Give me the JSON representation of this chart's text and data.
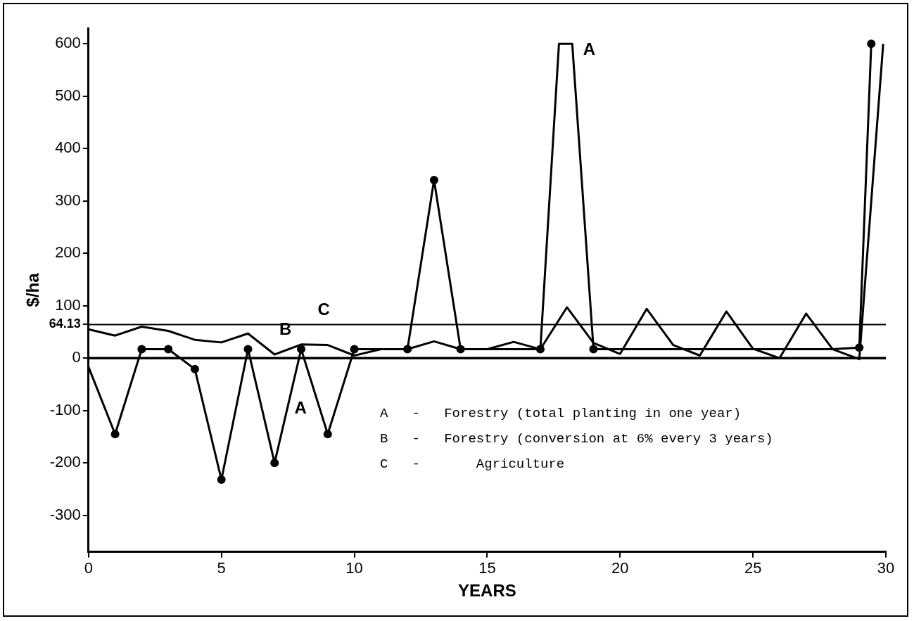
{
  "chart_data": {
    "type": "line",
    "xlabel": "YEARS",
    "ylabel": "$/ha",
    "xlim": [
      0,
      30
    ],
    "xticks": [
      0,
      5,
      10,
      15,
      20,
      25,
      30
    ],
    "ylim": [
      -370,
      630
    ],
    "yticks": [
      -300,
      -200,
      -100,
      0,
      {
        "value": 64.13,
        "label": "64.13"
      },
      100,
      200,
      300,
      400,
      500,
      600
    ],
    "grid": false,
    "legend": false,
    "series": [
      {
        "color": "#000000",
        "x": [
          0,
          1,
          2,
          3,
          4,
          5,
          6,
          7,
          8,
          9,
          10,
          11,
          12,
          13,
          14,
          15,
          16,
          17,
          17.7,
          18.2,
          19,
          20,
          21,
          22,
          23,
          24,
          25,
          26,
          27,
          28,
          29,
          29.45
        ],
        "values": [
          -17,
          -145,
          17,
          17,
          -21,
          -232,
          17,
          -200,
          17,
          -145,
          17,
          17,
          17,
          340,
          17,
          17,
          17,
          17,
          600,
          600,
          17,
          17,
          17,
          17,
          17,
          17,
          17,
          17,
          17,
          17,
          20,
          600
        ]
      },
      {
        "color": "#000000",
        "x": [
          0,
          1,
          2,
          3,
          4,
          5,
          6,
          7,
          8,
          9,
          10,
          11,
          12,
          13,
          14,
          15,
          16,
          17,
          18,
          19,
          20,
          21,
          22,
          23,
          24,
          25,
          26,
          27,
          28,
          29,
          29.9
        ],
        "values": [
          55,
          43,
          60,
          52,
          35,
          30,
          47,
          7,
          26,
          25,
          5,
          17,
          17,
          32,
          17,
          17,
          31,
          17,
          97,
          29,
          8,
          94,
          25,
          5,
          89,
          18,
          0,
          85,
          17,
          -2,
          600
        ]
      },
      {
        "type": "scatter",
        "color": "#000000",
        "marker": "circle",
        "x": [
          1,
          2,
          3,
          4,
          5,
          6,
          7,
          8,
          9,
          10,
          12,
          13,
          14,
          17,
          19,
          29,
          29.45
        ],
        "values": [
          -145,
          17,
          17,
          -21,
          -232,
          17,
          -200,
          17,
          -145,
          17,
          17,
          340,
          17,
          17,
          17,
          20,
          600
        ]
      }
    ],
    "ref_lines": [
      {
        "axis": "y",
        "value": 64.13,
        "label": "C"
      },
      {
        "axis": "y",
        "value": 0
      }
    ],
    "annotations": [
      "A",
      "A",
      "B",
      "A   -   Forestry (total planting in one year)",
      "B   -   Forestry (conversion at 6% every 3 years)",
      "C   -       Agriculture"
    ]
  }
}
